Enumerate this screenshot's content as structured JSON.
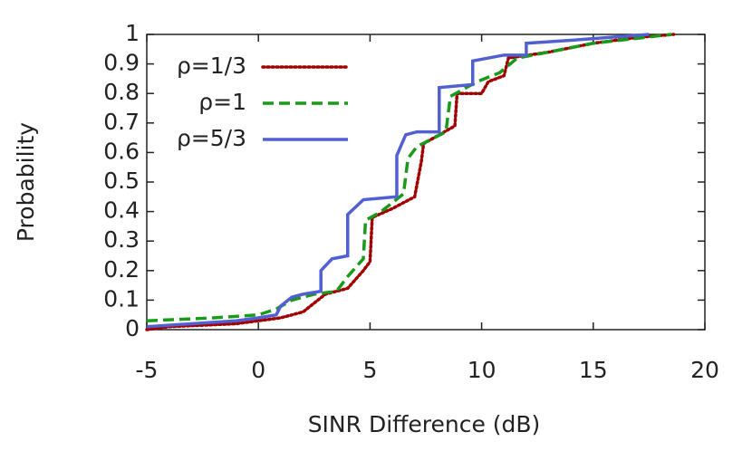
{
  "chart_data": {
    "type": "line",
    "xlabel": "SINR Difference (dB)",
    "ylabel": "Probability",
    "xlim": [
      -5,
      20
    ],
    "xticks": [
      -5,
      0,
      5,
      10,
      15,
      20
    ],
    "ylim": [
      0,
      1
    ],
    "yticks": [
      0,
      0.1,
      0.2,
      0.3,
      0.4,
      0.5,
      0.6,
      0.7,
      0.8,
      0.9,
      1
    ],
    "legend": "upper-left",
    "series": [
      {
        "name": "ρ=1/3",
        "color": "#a00000",
        "style": "dotted",
        "x": [
          -5,
          -4,
          -1,
          0,
          1,
          2,
          2.5,
          3,
          4,
          4.7,
          5,
          5.1,
          6,
          7,
          7.3,
          7.4,
          8.8,
          8.9,
          10,
          10.3,
          11,
          11.2,
          13,
          15,
          17,
          18.6
        ],
        "values": [
          0,
          0.01,
          0.02,
          0.03,
          0.04,
          0.06,
          0.09,
          0.12,
          0.14,
          0.2,
          0.23,
          0.38,
          0.41,
          0.45,
          0.57,
          0.63,
          0.69,
          0.8,
          0.8,
          0.84,
          0.86,
          0.92,
          0.94,
          0.97,
          0.99,
          1
        ]
      },
      {
        "name": "ρ=1",
        "color": "#1a9a1a",
        "style": "dashed",
        "x": [
          -5,
          -2,
          0,
          0.8,
          1.5,
          2.5,
          3.5,
          4,
          4.7,
          4.8,
          5.5,
          6.5,
          6.7,
          7.1,
          8.4,
          8.6,
          9.8,
          10.8,
          11.6,
          13,
          15,
          18.5
        ],
        "values": [
          0.03,
          0.04,
          0.05,
          0.07,
          0.1,
          0.12,
          0.13,
          0.18,
          0.24,
          0.37,
          0.4,
          0.46,
          0.58,
          0.62,
          0.67,
          0.79,
          0.84,
          0.87,
          0.92,
          0.94,
          0.97,
          1
        ]
      },
      {
        "name": "ρ=5/3",
        "color": "#5060d0",
        "style": "solid",
        "x": [
          -5,
          -3,
          -1,
          0,
          0.8,
          1,
          1.5,
          2,
          2.8,
          2.8,
          3.3,
          4,
          4,
          4.7,
          6.2,
          6.2,
          6.6,
          7.1,
          8.1,
          8.1,
          9.6,
          9.6,
          11,
          12,
          12,
          14,
          17.5
        ],
        "values": [
          0.01,
          0.02,
          0.03,
          0.04,
          0.05,
          0.08,
          0.11,
          0.12,
          0.13,
          0.2,
          0.24,
          0.25,
          0.39,
          0.44,
          0.45,
          0.59,
          0.66,
          0.67,
          0.67,
          0.82,
          0.83,
          0.91,
          0.93,
          0.93,
          0.97,
          0.98,
          1
        ]
      }
    ]
  }
}
